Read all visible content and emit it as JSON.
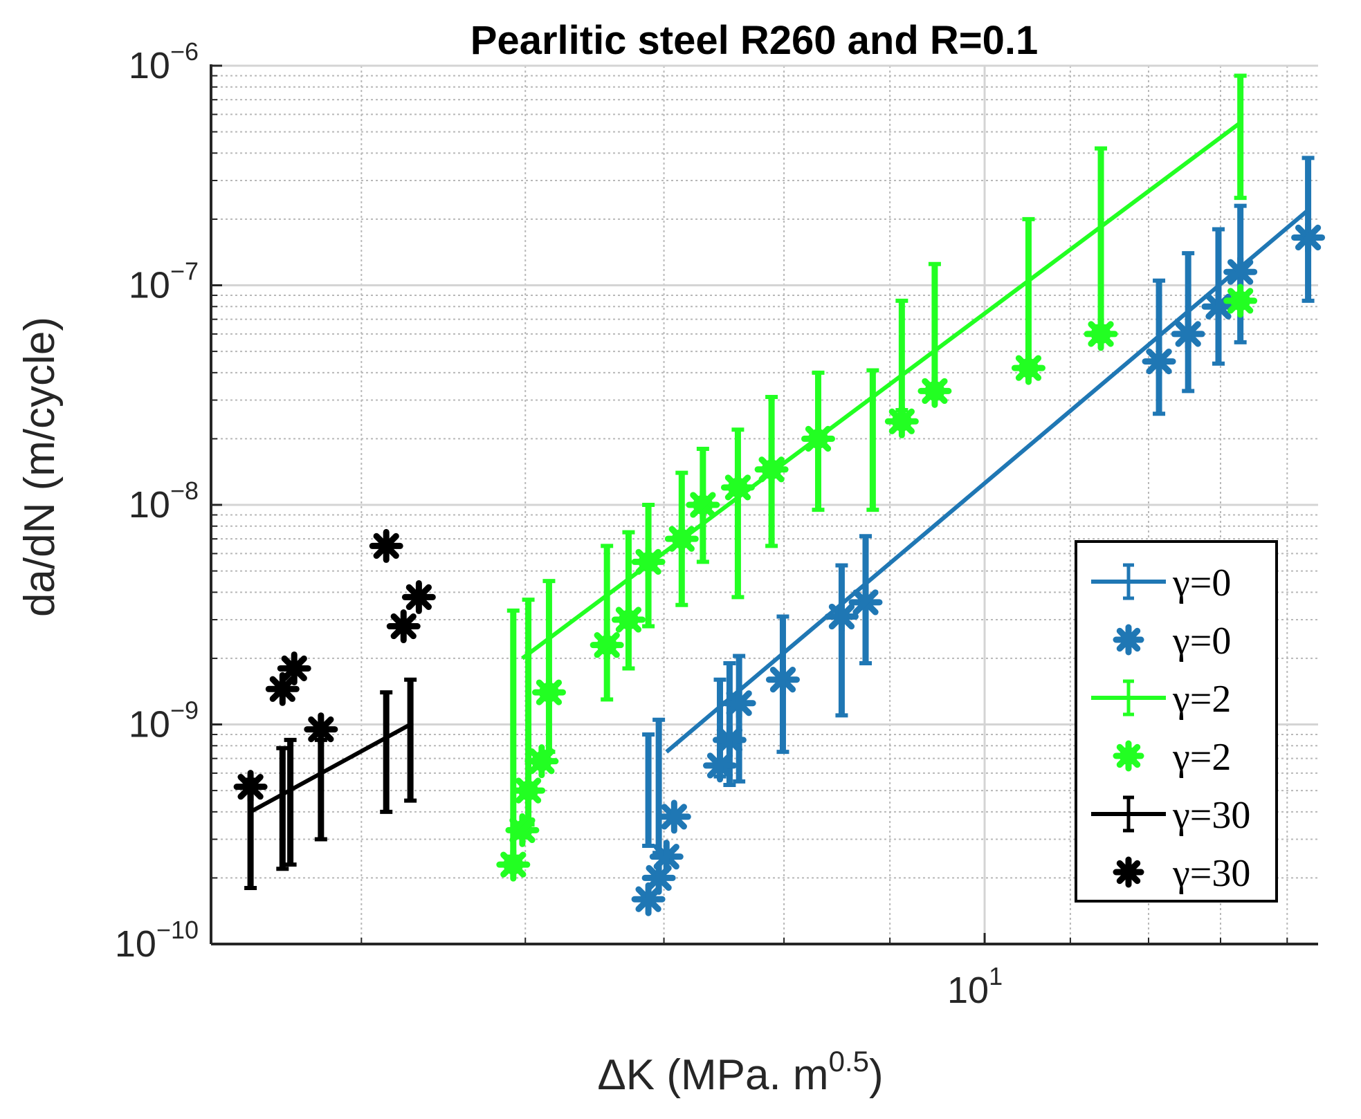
{
  "chart_data": {
    "type": "scatter",
    "title": "Pearlitic steel R260 and R=0.1",
    "xlabel": {
      "main": "ΔK (MPa. m",
      "sup": "0.5",
      "close": ")"
    },
    "ylabel": "da/dN (m/cycle)",
    "xscale": "log",
    "yscale": "log",
    "xlim": [
      4.23,
      14.49
    ],
    "ylim": [
      1e-10,
      1e-06
    ],
    "grid": true,
    "minor_grid": true,
    "legend_position": "lower-right",
    "x_ticks": [
      {
        "value": 10,
        "base": "10",
        "exp": "1"
      }
    ],
    "y_ticks": [
      {
        "value": 1e-10,
        "base": "10",
        "exp": "−10"
      },
      {
        "value": 1e-09,
        "base": "10",
        "exp": "−9"
      },
      {
        "value": 1e-08,
        "base": "10",
        "exp": "−8"
      },
      {
        "value": 1e-07,
        "base": "10",
        "exp": "−7"
      },
      {
        "value": 1e-06,
        "base": "10",
        "exp": "−6"
      }
    ],
    "series": [
      {
        "name": "γ=0",
        "kind": "fit-errorbar",
        "color": "#1f77b4",
        "line": [
          [
            7.02,
            7.5e-10
          ],
          [
            14.33,
            2.2e-07
          ]
        ],
        "errorbars": [
          {
            "x": 6.88,
            "y": 4.3e-10,
            "lo": 2.8e-10,
            "hi": 9e-10
          },
          {
            "x": 6.96,
            "y": 5.3e-10,
            "lo": 2.6e-10,
            "hi": 1.05e-09
          },
          {
            "x": 7.45,
            "y": 9.5e-10,
            "lo": 5.8e-10,
            "hi": 1.6e-09
          },
          {
            "x": 7.53,
            "y": 1.05e-09,
            "lo": 5.3e-10,
            "hi": 1.9e-09
          },
          {
            "x": 7.61,
            "y": 1.2e-09,
            "lo": 5.5e-10,
            "hi": 2.05e-09
          },
          {
            "x": 7.99,
            "y": 1.55e-09,
            "lo": 7.5e-10,
            "hi": 3.1e-09
          },
          {
            "x": 8.53,
            "y": 3e-09,
            "lo": 1.1e-09,
            "hi": 5.3e-09
          },
          {
            "x": 8.76,
            "y": 3.6e-09,
            "lo": 1.9e-09,
            "hi": 7.2e-09
          },
          {
            "x": 12.14,
            "y": 4.5e-08,
            "lo": 2.6e-08,
            "hi": 1.05e-07
          },
          {
            "x": 12.54,
            "y": 6e-08,
            "lo": 3.3e-08,
            "hi": 1.4e-07
          },
          {
            "x": 12.97,
            "y": 8e-08,
            "lo": 4.4e-08,
            "hi": 1.8e-07
          },
          {
            "x": 13.29,
            "y": 1.15e-07,
            "lo": 5.5e-08,
            "hi": 2.3e-07
          },
          {
            "x": 14.33,
            "y": 2.2e-07,
            "lo": 8.5e-08,
            "hi": 3.8e-07
          }
        ]
      },
      {
        "name": "γ=0",
        "kind": "markers",
        "marker": "asterisk",
        "color": "#1f77b4",
        "points": [
          [
            6.88,
            1.6e-10
          ],
          [
            6.96,
            2e-10
          ],
          [
            7.02,
            2.5e-10
          ],
          [
            7.08,
            3.8e-10
          ],
          [
            7.45,
            6.5e-10
          ],
          [
            7.53,
            8.5e-10
          ],
          [
            7.61,
            1.25e-09
          ],
          [
            7.99,
            1.6e-09
          ],
          [
            8.53,
            3.1e-09
          ],
          [
            8.76,
            3.6e-09
          ],
          [
            12.14,
            4.5e-08
          ],
          [
            12.54,
            6e-08
          ],
          [
            12.97,
            8e-08
          ],
          [
            13.29,
            1.15e-07
          ],
          [
            14.33,
            1.65e-07
          ]
        ]
      },
      {
        "name": "γ=2",
        "kind": "fit-errorbar",
        "color": "#22ff22",
        "line": [
          [
            5.98,
            2e-09
          ],
          [
            13.29,
            5.5e-07
          ]
        ],
        "errorbars": [
          {
            "x": 5.92,
            "y": 5e-10,
            "lo": 2.5e-10,
            "hi": 3.3e-09
          },
          {
            "x": 6.02,
            "y": 7.5e-10,
            "lo": 3.5e-10,
            "hi": 3.7e-09
          },
          {
            "x": 6.16,
            "y": 1.4e-09,
            "lo": 7.5e-10,
            "hi": 4.5e-09
          },
          {
            "x": 6.57,
            "y": 2.4e-09,
            "lo": 1.3e-09,
            "hi": 6.5e-09
          },
          {
            "x": 6.73,
            "y": 3.5e-09,
            "lo": 1.8e-09,
            "hi": 7.5e-09
          },
          {
            "x": 6.88,
            "y": 5e-09,
            "lo": 2.8e-09,
            "hi": 1e-08
          },
          {
            "x": 7.14,
            "y": 7e-09,
            "lo": 3.5e-09,
            "hi": 1.4e-08
          },
          {
            "x": 7.31,
            "y": 1e-08,
            "lo": 5.5e-09,
            "hi": 1.8e-08
          },
          {
            "x": 7.6,
            "y": 1.2e-08,
            "lo": 3.8e-09,
            "hi": 2.2e-08
          },
          {
            "x": 7.89,
            "y": 1.45e-08,
            "lo": 6.5e-09,
            "hi": 3.1e-08
          },
          {
            "x": 8.31,
            "y": 1.9e-08,
            "lo": 9.5e-09,
            "hi": 4e-08
          },
          {
            "x": 8.83,
            "y": 2.2e-08,
            "lo": 9.5e-09,
            "hi": 4.1e-08
          },
          {
            "x": 9.12,
            "y": 5e-08,
            "lo": 2.7e-08,
            "hi": 8.5e-08
          },
          {
            "x": 9.46,
            "y": 8e-08,
            "lo": 3.5e-08,
            "hi": 1.25e-07
          },
          {
            "x": 10.5,
            "y": 1.2e-07,
            "lo": 4.3e-08,
            "hi": 2e-07
          },
          {
            "x": 11.38,
            "y": 2.6e-07,
            "lo": 6.5e-08,
            "hi": 4.2e-07
          },
          {
            "x": 13.29,
            "y": 5.5e-07,
            "lo": 2.5e-07,
            "hi": 9e-07
          }
        ]
      },
      {
        "name": "γ=2",
        "kind": "markers",
        "marker": "filled-asterisk",
        "color": "#22ff22",
        "points": [
          [
            5.92,
            2.3e-10
          ],
          [
            5.98,
            3.3e-10
          ],
          [
            6.02,
            5e-10
          ],
          [
            6.11,
            6.8e-10
          ],
          [
            6.16,
            1.4e-09
          ],
          [
            6.57,
            2.3e-09
          ],
          [
            6.73,
            3e-09
          ],
          [
            6.88,
            5.5e-09
          ],
          [
            7.14,
            7e-09
          ],
          [
            7.31,
            1e-08
          ],
          [
            7.6,
            1.2e-08
          ],
          [
            7.89,
            1.45e-08
          ],
          [
            8.31,
            2e-08
          ],
          [
            9.12,
            2.4e-08
          ],
          [
            9.46,
            3.3e-08
          ],
          [
            10.5,
            4.2e-08
          ],
          [
            11.38,
            6e-08
          ],
          [
            13.29,
            8.5e-08
          ]
        ]
      },
      {
        "name": "γ=30",
        "kind": "fit-errorbar",
        "color": "#000000",
        "line": [
          [
            4.42,
            4e-10
          ],
          [
            5.28,
            1e-09
          ]
        ],
        "errorbars": [
          {
            "x": 4.42,
            "y": 4e-10,
            "lo": 1.8e-10,
            "hi": 5.6e-10
          },
          {
            "x": 4.58,
            "y": 5e-10,
            "lo": 2.2e-10,
            "hi": 7.8e-10
          },
          {
            "x": 4.62,
            "y": 5.2e-10,
            "lo": 2.3e-10,
            "hi": 8.5e-10
          },
          {
            "x": 4.78,
            "y": 6.5e-10,
            "lo": 3e-10,
            "hi": 8.5e-10
          },
          {
            "x": 5.14,
            "y": 9e-10,
            "lo": 4e-10,
            "hi": 1.4e-09
          },
          {
            "x": 5.28,
            "y": 1e-09,
            "lo": 4.5e-10,
            "hi": 1.6e-09
          }
        ]
      },
      {
        "name": "γ=30",
        "kind": "markers",
        "marker": "asterisk",
        "color": "#000000",
        "points": [
          [
            4.42,
            5.2e-10
          ],
          [
            4.58,
            1.45e-09
          ],
          [
            4.64,
            1.8e-09
          ],
          [
            4.78,
            9.5e-10
          ],
          [
            5.14,
            6.5e-09
          ],
          [
            5.24,
            2.8e-09
          ],
          [
            5.33,
            3.8e-09
          ]
        ]
      }
    ],
    "legend": [
      {
        "label": "γ=0",
        "style": "line-errorbar",
        "color": "#1f77b4"
      },
      {
        "label": "γ=0",
        "style": "asterisk",
        "color": "#1f77b4"
      },
      {
        "label": "γ=2",
        "style": "line-errorbar",
        "color": "#22ff22"
      },
      {
        "label": "γ=2",
        "style": "filled-asterisk",
        "color": "#22ff22"
      },
      {
        "label": "γ=30",
        "style": "line-errorbar",
        "color": "#000000"
      },
      {
        "label": "γ=30",
        "style": "asterisk",
        "color": "#000000"
      }
    ]
  }
}
